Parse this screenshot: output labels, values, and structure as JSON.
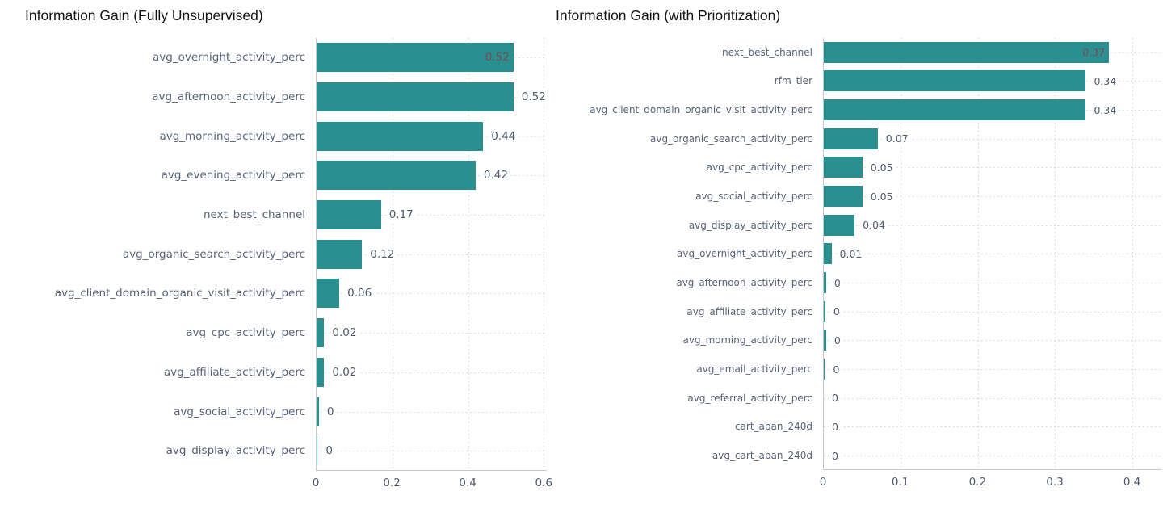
{
  "accent_color": "#2b8f8f",
  "chart_data": [
    {
      "type": "bar",
      "orientation": "horizontal",
      "title": "Information Gain (Fully Unsupervised)",
      "xlabel": "",
      "ylabel": "",
      "xlim": [
        0,
        0.608
      ],
      "x_ticks": [
        0,
        0.2,
        0.4,
        0.6
      ],
      "x_tick_labels": [
        "0",
        "0.2",
        "0.4",
        "0.6"
      ],
      "grid": "dotted",
      "legend": "none",
      "bar_color": "#2b8f8f",
      "inside_label_color": "#7e4b59",
      "bars": [
        {
          "name": "avg_overnight_activity_perc",
          "value": 0.52,
          "label": "0.52",
          "label_inside": true
        },
        {
          "name": "avg_afternoon_activity_perc",
          "value": 0.52,
          "label": "0.52"
        },
        {
          "name": "avg_morning_activity_perc",
          "value": 0.44,
          "label": "0.44"
        },
        {
          "name": "avg_evening_activity_perc",
          "value": 0.42,
          "label": "0.42"
        },
        {
          "name": "next_best_channel",
          "value": 0.17,
          "label": "0.17"
        },
        {
          "name": "avg_organic_search_activity_perc",
          "value": 0.12,
          "label": "0.12"
        },
        {
          "name": "avg_client_domain_organic_visit_activity_perc",
          "value": 0.06,
          "label": "0.06"
        },
        {
          "name": "avg_cpc_activity_perc",
          "value": 0.02,
          "label": "0.02"
        },
        {
          "name": "avg_affiliate_activity_perc",
          "value": 0.02,
          "label": "0.02"
        },
        {
          "name": "avg_social_activity_perc",
          "value": 0.006,
          "label": "0"
        },
        {
          "name": "avg_display_activity_perc",
          "value": 0.003,
          "label": "0"
        }
      ]
    },
    {
      "type": "bar",
      "orientation": "horizontal",
      "title": "Information Gain (with Prioritization)",
      "xlabel": "",
      "ylabel": "",
      "xlim": [
        0,
        0.438
      ],
      "x_ticks": [
        0,
        0.1,
        0.2,
        0.3,
        0.4
      ],
      "x_tick_labels": [
        "0",
        "0.1",
        "0.2",
        "0.3",
        "0.4"
      ],
      "grid": "dotted",
      "legend": "none",
      "bar_color": "#2b8f8f",
      "inside_label_color": "#7e4b59",
      "bars": [
        {
          "name": "next_best_channel",
          "value": 0.37,
          "label": "0.37",
          "label_inside": true
        },
        {
          "name": "rfm_tier",
          "value": 0.34,
          "label": "0.34"
        },
        {
          "name": "avg_client_domain_organic_visit_activity_perc",
          "value": 0.34,
          "label": "0.34"
        },
        {
          "name": "avg_organic_search_activity_perc",
          "value": 0.07,
          "label": "0.07"
        },
        {
          "name": "avg_cpc_activity_perc",
          "value": 0.05,
          "label": "0.05"
        },
        {
          "name": "avg_social_activity_perc",
          "value": 0.05,
          "label": "0.05"
        },
        {
          "name": "avg_display_activity_perc",
          "value": 0.04,
          "label": "0.04"
        },
        {
          "name": "avg_overnight_activity_perc",
          "value": 0.01,
          "label": "0.01"
        },
        {
          "name": "avg_afternoon_activity_perc",
          "value": 0.003,
          "label": "0"
        },
        {
          "name": "avg_affiliate_activity_perc",
          "value": 0.002,
          "label": "0"
        },
        {
          "name": "avg_morning_activity_perc",
          "value": 0.003,
          "label": "0"
        },
        {
          "name": "avg_email_activity_perc",
          "value": 0.0015,
          "label": "0"
        },
        {
          "name": "avg_referral_activity_perc",
          "value": 0,
          "label": "0"
        },
        {
          "name": "cart_aban_240d",
          "value": 0,
          "label": "0"
        },
        {
          "name": "avg_cart_aban_240d",
          "value": 0,
          "label": "0"
        }
      ]
    }
  ]
}
